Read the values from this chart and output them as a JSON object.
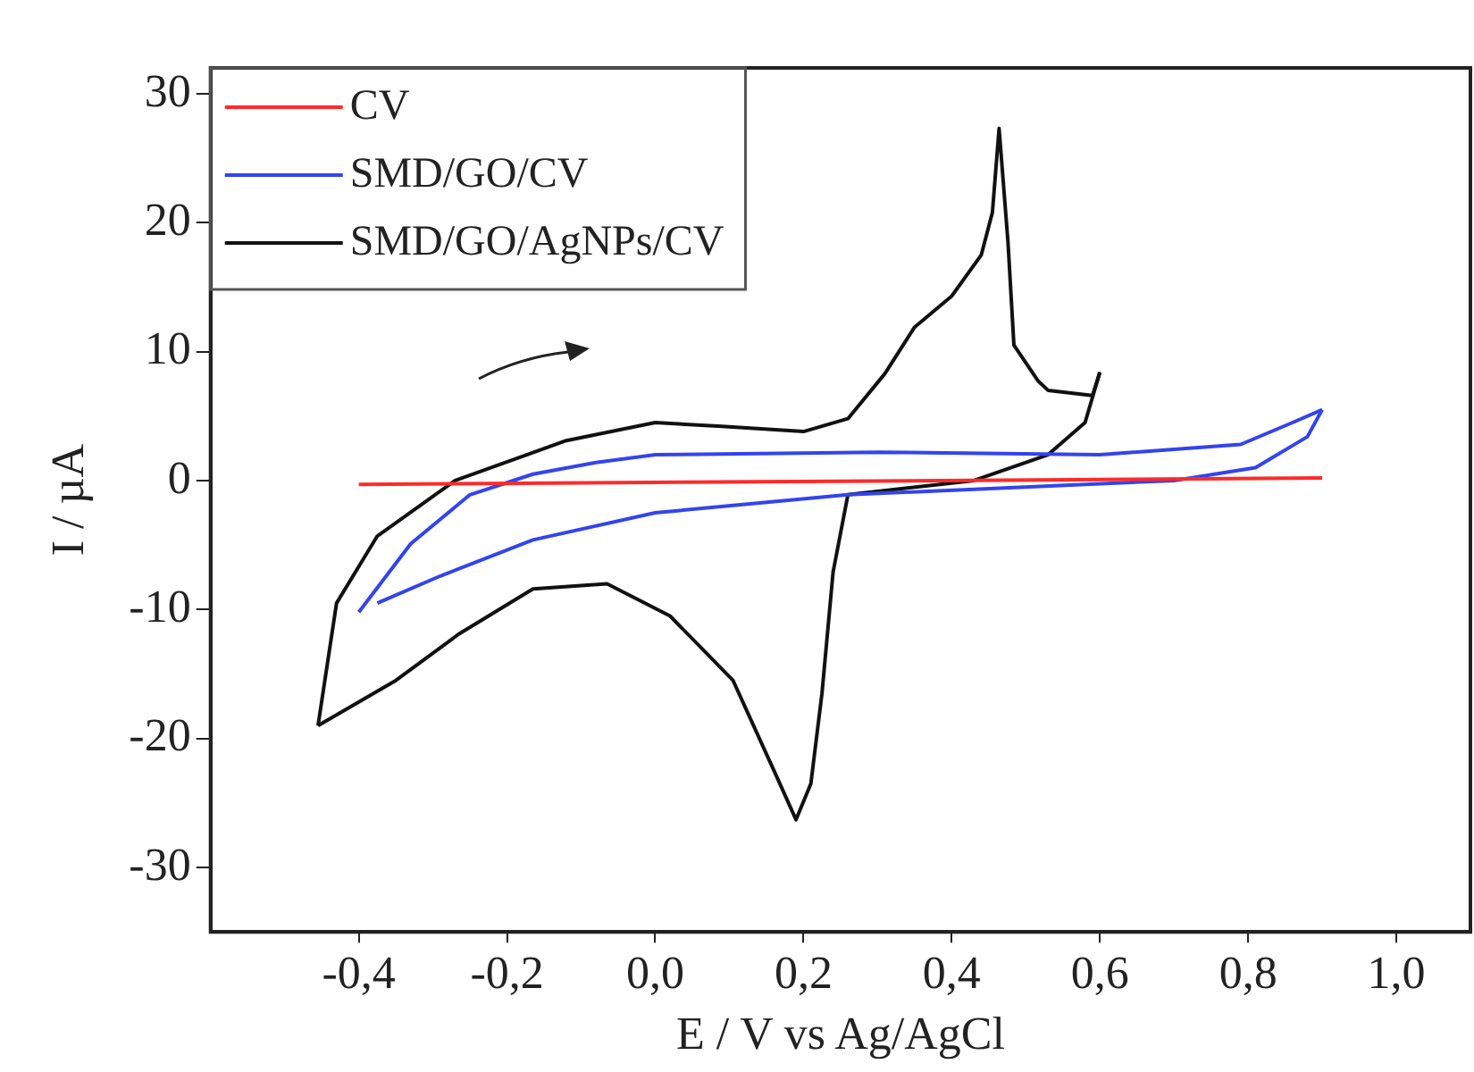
{
  "chart_data": {
    "type": "line",
    "xlabel": "E / V vs Ag/AgCl",
    "ylabel": "I / µA",
    "xlim": [
      -0.6,
      1.1
    ],
    "xticks": [
      {
        "value": -0.4,
        "label": "-0,4"
      },
      {
        "value": -0.2,
        "label": "-0,2"
      },
      {
        "value": 0,
        "label": "0,0"
      },
      {
        "value": 0.2,
        "label": "0,2"
      },
      {
        "value": 0.4,
        "label": "0,4"
      },
      {
        "value": 0.6,
        "label": "0,6"
      },
      {
        "value": 0.8,
        "label": "0,8"
      },
      {
        "value": 1.0,
        "label": "1,0"
      }
    ],
    "ylim": [
      -35,
      32
    ],
    "yticks": [
      -30,
      -20,
      -10,
      0,
      10,
      20,
      30
    ],
    "grid": false,
    "legend": "top left",
    "marker": "none",
    "line_style": "solid",
    "series": [
      {
        "name": "CV",
        "color": "#ff2a2a",
        "x": [
          -0.4,
          0.9
        ],
        "values": [
          -0.3,
          0.2
        ]
      },
      {
        "name": "SMD/GO/CV",
        "color": "#3344ee",
        "x": [
          -0.4,
          -0.33,
          -0.25,
          -0.165,
          -0.08,
          0.0,
          0.3,
          0.6,
          0.79,
          0.86,
          0.9
        ],
        "values": [
          -10.2,
          -4.9,
          -1.1,
          0.5,
          1.4,
          2.0,
          2.2,
          2.0,
          2.8,
          4.5,
          5.5
        ]
      },
      {
        "color": "#3344ee",
        "x": [
          0.9,
          0.88,
          0.81,
          0.7,
          0.26,
          0.0,
          -0.165,
          -0.29,
          -0.375
        ],
        "values": [
          5.5,
          3.4,
          1.0,
          0,
          -1.1,
          -2.5,
          -4.6,
          -7.4,
          -9.5
        ]
      },
      {
        "name": "SMD/GO/AgNPs/CV",
        "color": "#111111",
        "x": [
          -0.455,
          -0.43,
          -0.375,
          -0.27,
          -0.12,
          0.0,
          0.09,
          0.2,
          0.26,
          0.31,
          0.35,
          0.4,
          0.44,
          0.455,
          0.464,
          0.476,
          0.484,
          0.517,
          0.53,
          0.59,
          0.6
        ],
        "values": [
          -19.0,
          -9.5,
          -4.3,
          0,
          3.1,
          4.5,
          4.2,
          3.8,
          4.8,
          8.3,
          11.9,
          14.3,
          17.5,
          20.8,
          27.3,
          18.5,
          10.5,
          7.7,
          7.0,
          6.6,
          8.4
        ]
      },
      {
        "color": "#111111",
        "x": [
          0.6,
          0.58,
          0.53,
          0.43,
          0.26,
          0.24,
          0.225,
          0.21,
          0.19,
          0.165,
          0.105,
          0.02,
          -0.065,
          -0.165,
          -0.265,
          -0.35,
          -0.455
        ],
        "values": [
          8.4,
          4.5,
          2.0,
          0,
          -1.1,
          -7.1,
          -16.5,
          -23.5,
          -26.3,
          -23.1,
          -15.5,
          -10.5,
          -8.0,
          -8.4,
          -11.9,
          -15.5,
          -19.0
        ]
      }
    ]
  }
}
